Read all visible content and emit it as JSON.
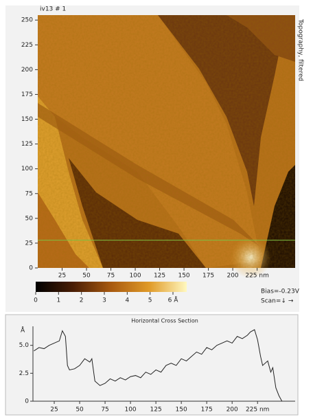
{
  "image": {
    "title": "iv13 # 1",
    "side_label": "Topography, filtered",
    "xlim": [
      0,
      264
    ],
    "ylim": [
      0,
      255
    ],
    "xticks": [
      25,
      50,
      75,
      100,
      125,
      150,
      175,
      200,
      {
        "value": 225,
        "label": "225 nm"
      }
    ],
    "yticks": [
      0,
      25,
      50,
      75,
      100,
      125,
      150,
      175,
      200,
      225,
      250
    ],
    "cross_section_at": 28
  },
  "colorbar": {
    "lim": [
      0,
      6.6
    ],
    "ticks": [
      0,
      1,
      2,
      3,
      4,
      5,
      {
        "value": 6,
        "label": "6 Å"
      }
    ]
  },
  "info": {
    "bias": "Bias=-0.23V",
    "scan": "Scan=↓ →"
  },
  "chart_data": {
    "type": "line",
    "title": "Horizontal Cross Section",
    "y_label": "Å",
    "color": "#222",
    "xlim": [
      0,
      262
    ],
    "ylim": [
      0,
      6.7
    ],
    "xticks": [
      25,
      50,
      75,
      100,
      125,
      150,
      175,
      200,
      {
        "value": 225,
        "label": "225 nm"
      }
    ],
    "yticks": [
      0,
      {
        "value": 2.5,
        "label": "2.5"
      },
      {
        "value": 5,
        "label": "5.0"
      }
    ],
    "x": [
      5,
      10,
      15,
      20,
      25,
      30,
      33,
      36,
      38,
      40,
      45,
      50,
      55,
      60,
      62,
      65,
      70,
      75,
      80,
      85,
      90,
      95,
      100,
      105,
      110,
      115,
      120,
      125,
      130,
      135,
      140,
      145,
      150,
      155,
      160,
      165,
      170,
      175,
      180,
      185,
      190,
      195,
      200,
      205,
      210,
      215,
      218,
      222,
      225,
      228,
      230,
      235,
      238,
      240,
      243,
      246,
      249
    ],
    "values": [
      4.5,
      4.8,
      4.7,
      5.0,
      5.2,
      5.4,
      6.3,
      5.8,
      3.2,
      2.8,
      2.9,
      3.2,
      3.8,
      3.5,
      3.8,
      1.8,
      1.4,
      1.6,
      2.0,
      1.8,
      2.1,
      1.9,
      2.2,
      2.3,
      2.1,
      2.6,
      2.4,
      2.8,
      2.6,
      3.2,
      3.4,
      3.2,
      3.8,
      3.6,
      4.0,
      4.4,
      4.2,
      4.8,
      4.6,
      5.0,
      5.2,
      5.4,
      5.2,
      5.8,
      5.6,
      5.9,
      6.2,
      6.4,
      5.5,
      4.0,
      3.2,
      3.6,
      2.6,
      3.0,
      1.2,
      0.5,
      0
    ]
  }
}
